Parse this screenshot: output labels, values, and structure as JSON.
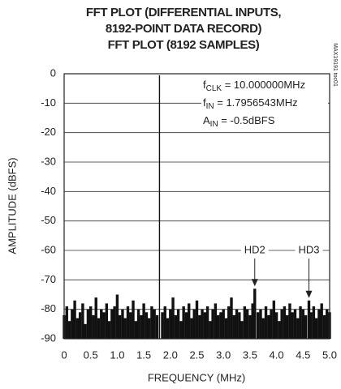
{
  "chart_data": {
    "type": "spectrum",
    "title": [
      "FFT PLOT (DIFFERENTIAL INPUTS,",
      "8192-POINT DATA RECORD)",
      "FFT PLOT (8192 SAMPLES)"
    ],
    "xlabel": "FREQUENCY (MHz)",
    "ylabel": "AMPLITUDE (dBFS)",
    "side_note": "MAX19191 toc01",
    "conditions": [
      {
        "text": "f",
        "sub": "CLK",
        "rest": " = 10.000000MHz"
      },
      {
        "text": "f",
        "sub": "IN",
        "rest": " = 1.7956543MHz"
      },
      {
        "text": "A",
        "sub": "IN",
        "rest": " = -0.5dBFS"
      }
    ],
    "harmonics": [
      {
        "label": "HD2",
        "index": 72
      },
      {
        "label": "HD3",
        "index": 92
      }
    ],
    "color": "#111111",
    "grid": true,
    "xlim": [
      0,
      5
    ],
    "ylim": [
      -90,
      0
    ],
    "xticks": [
      0,
      0.5,
      {
        "value": 1,
        "label": "1.0"
      },
      1.5,
      {
        "value": 2,
        "label": "2.0"
      },
      2.5,
      {
        "value": 3,
        "label": "3.0"
      },
      3.5,
      {
        "value": 4,
        "label": "4.0"
      },
      4.5,
      {
        "value": 5,
        "label": "5.0"
      }
    ],
    "yticks": [
      0,
      -10,
      -20,
      -30,
      -40,
      -50,
      -60,
      -70,
      -80,
      -90
    ],
    "x": [
      0,
      0.05,
      0.1,
      0.15,
      0.2,
      0.25,
      0.3,
      0.35,
      0.4,
      0.45,
      0.5,
      0.55,
      0.6,
      0.65,
      0.7,
      0.75,
      0.8,
      0.85,
      0.9,
      0.95,
      1,
      1.05,
      1.1,
      1.15,
      1.2,
      1.25,
      1.3,
      1.35,
      1.4,
      1.45,
      1.5,
      1.55,
      1.6,
      1.65,
      1.7,
      1.75,
      1.7957,
      1.85,
      1.9,
      1.95,
      2,
      2.05,
      2.1,
      2.15,
      2.2,
      2.25,
      2.3,
      2.35,
      2.4,
      2.45,
      2.5,
      2.55,
      2.6,
      2.65,
      2.7,
      2.75,
      2.8,
      2.85,
      2.9,
      2.95,
      3,
      3.05,
      3.1,
      3.15,
      3.2,
      3.25,
      3.3,
      3.35,
      3.4,
      3.45,
      3.5,
      3.55,
      3.59,
      3.65,
      3.7,
      3.75,
      3.8,
      3.85,
      3.9,
      3.95,
      4,
      4.05,
      4.1,
      4.15,
      4.2,
      4.25,
      4.3,
      4.35,
      4.4,
      4.45,
      4.5,
      4.55,
      4.61,
      4.65,
      4.7,
      4.75,
      4.8,
      4.85,
      4.9,
      4.95,
      5
    ],
    "values": [
      -82,
      -79,
      -84,
      -80,
      -77,
      -83,
      -81,
      -78,
      -85,
      -80,
      -79,
      -82,
      -76,
      -83,
      -80,
      -81,
      -78,
      -84,
      -80,
      -79,
      -75,
      -82,
      -80,
      -83,
      -79,
      -81,
      -77,
      -84,
      -80,
      -82,
      -78,
      -81,
      -83,
      -79,
      -80,
      -82,
      -0.5,
      -81,
      -79,
      -83,
      -80,
      -76,
      -82,
      -80,
      -84,
      -79,
      -81,
      -78,
      -83,
      -80,
      -77,
      -82,
      -80,
      -81,
      -79,
      -84,
      -80,
      -78,
      -82,
      -81,
      -80,
      -83,
      -79,
      -76,
      -82,
      -80,
      -81,
      -84,
      -79,
      -80,
      -82,
      -78,
      -73,
      -81,
      -80,
      -83,
      -79,
      -82,
      -80,
      -77,
      -81,
      -84,
      -80,
      -79,
      -82,
      -78,
      -81,
      -80,
      -83,
      -79,
      -80,
      -82,
      -77,
      -81,
      -79,
      -83,
      -80,
      -78,
      -82,
      -80,
      -81
    ]
  }
}
